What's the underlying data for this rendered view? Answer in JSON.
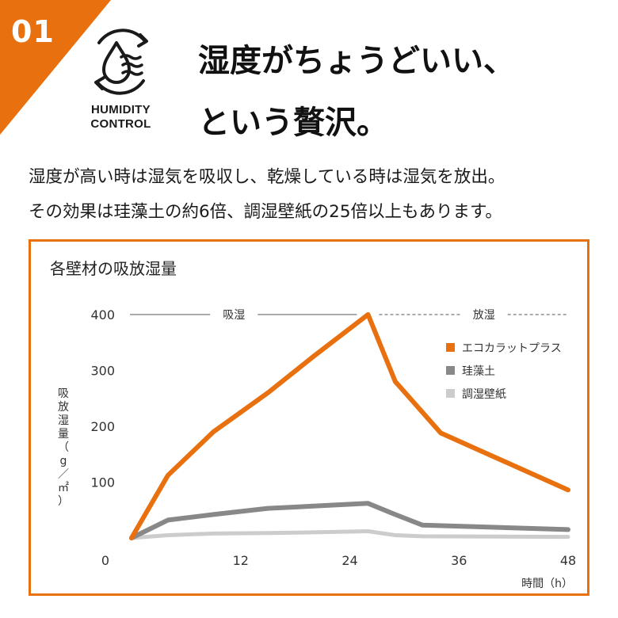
{
  "badge": {
    "number": "01"
  },
  "logo": {
    "line1": "HUMIDITY",
    "line2": "CONTROL",
    "icon": "humidity-cycle-icon"
  },
  "headline": {
    "line1": "湿度がちょうどいい、",
    "line2": "という贅沢。"
  },
  "lead": {
    "line1": "湿度が高い時は湿気を吸収し、乾燥している時は湿気を放出。",
    "line2": "その効果は珪藻土の約6倍、調湿壁紙の25倍以上もあります。"
  },
  "colors": {
    "accent": "#e8700e",
    "diatom": "#888888",
    "wallpaper": "#cccccc"
  },
  "chart_data": {
    "type": "line",
    "title": "各壁材の吸放湿量",
    "xlabel": "時間（h）",
    "ylabel": "吸放湿量（g／㎡）",
    "xlim": [
      0,
      48
    ],
    "ylim": [
      0,
      400
    ],
    "xticks": [
      "0",
      "12",
      "24",
      "36",
      "48"
    ],
    "yticks": [
      "100",
      "200",
      "300",
      "400"
    ],
    "phases": [
      {
        "label": "吸湿",
        "from": 0,
        "to": 26
      },
      {
        "label": "放湿",
        "from": 26,
        "to": 48
      }
    ],
    "legend_position": "right",
    "series": [
      {
        "name": "エコカラットプラス",
        "color": "#e8700e",
        "x": [
          0,
          4,
          9,
          15,
          20,
          26,
          29,
          34,
          48
        ],
        "y": [
          0,
          112,
          190,
          260,
          325,
          400,
          280,
          188,
          86
        ]
      },
      {
        "name": "珪藻土",
        "color": "#888888",
        "x": [
          0,
          4,
          9,
          15,
          20,
          26,
          29,
          32,
          48
        ],
        "y": [
          0,
          32,
          42,
          53,
          57,
          62,
          42,
          23,
          15
        ]
      },
      {
        "name": "調湿壁紙",
        "color": "#cccccc",
        "x": [
          0,
          4,
          9,
          15,
          20,
          26,
          29,
          32,
          48
        ],
        "y": [
          0,
          5,
          8,
          9,
          10,
          12,
          5,
          3,
          2
        ]
      }
    ]
  }
}
